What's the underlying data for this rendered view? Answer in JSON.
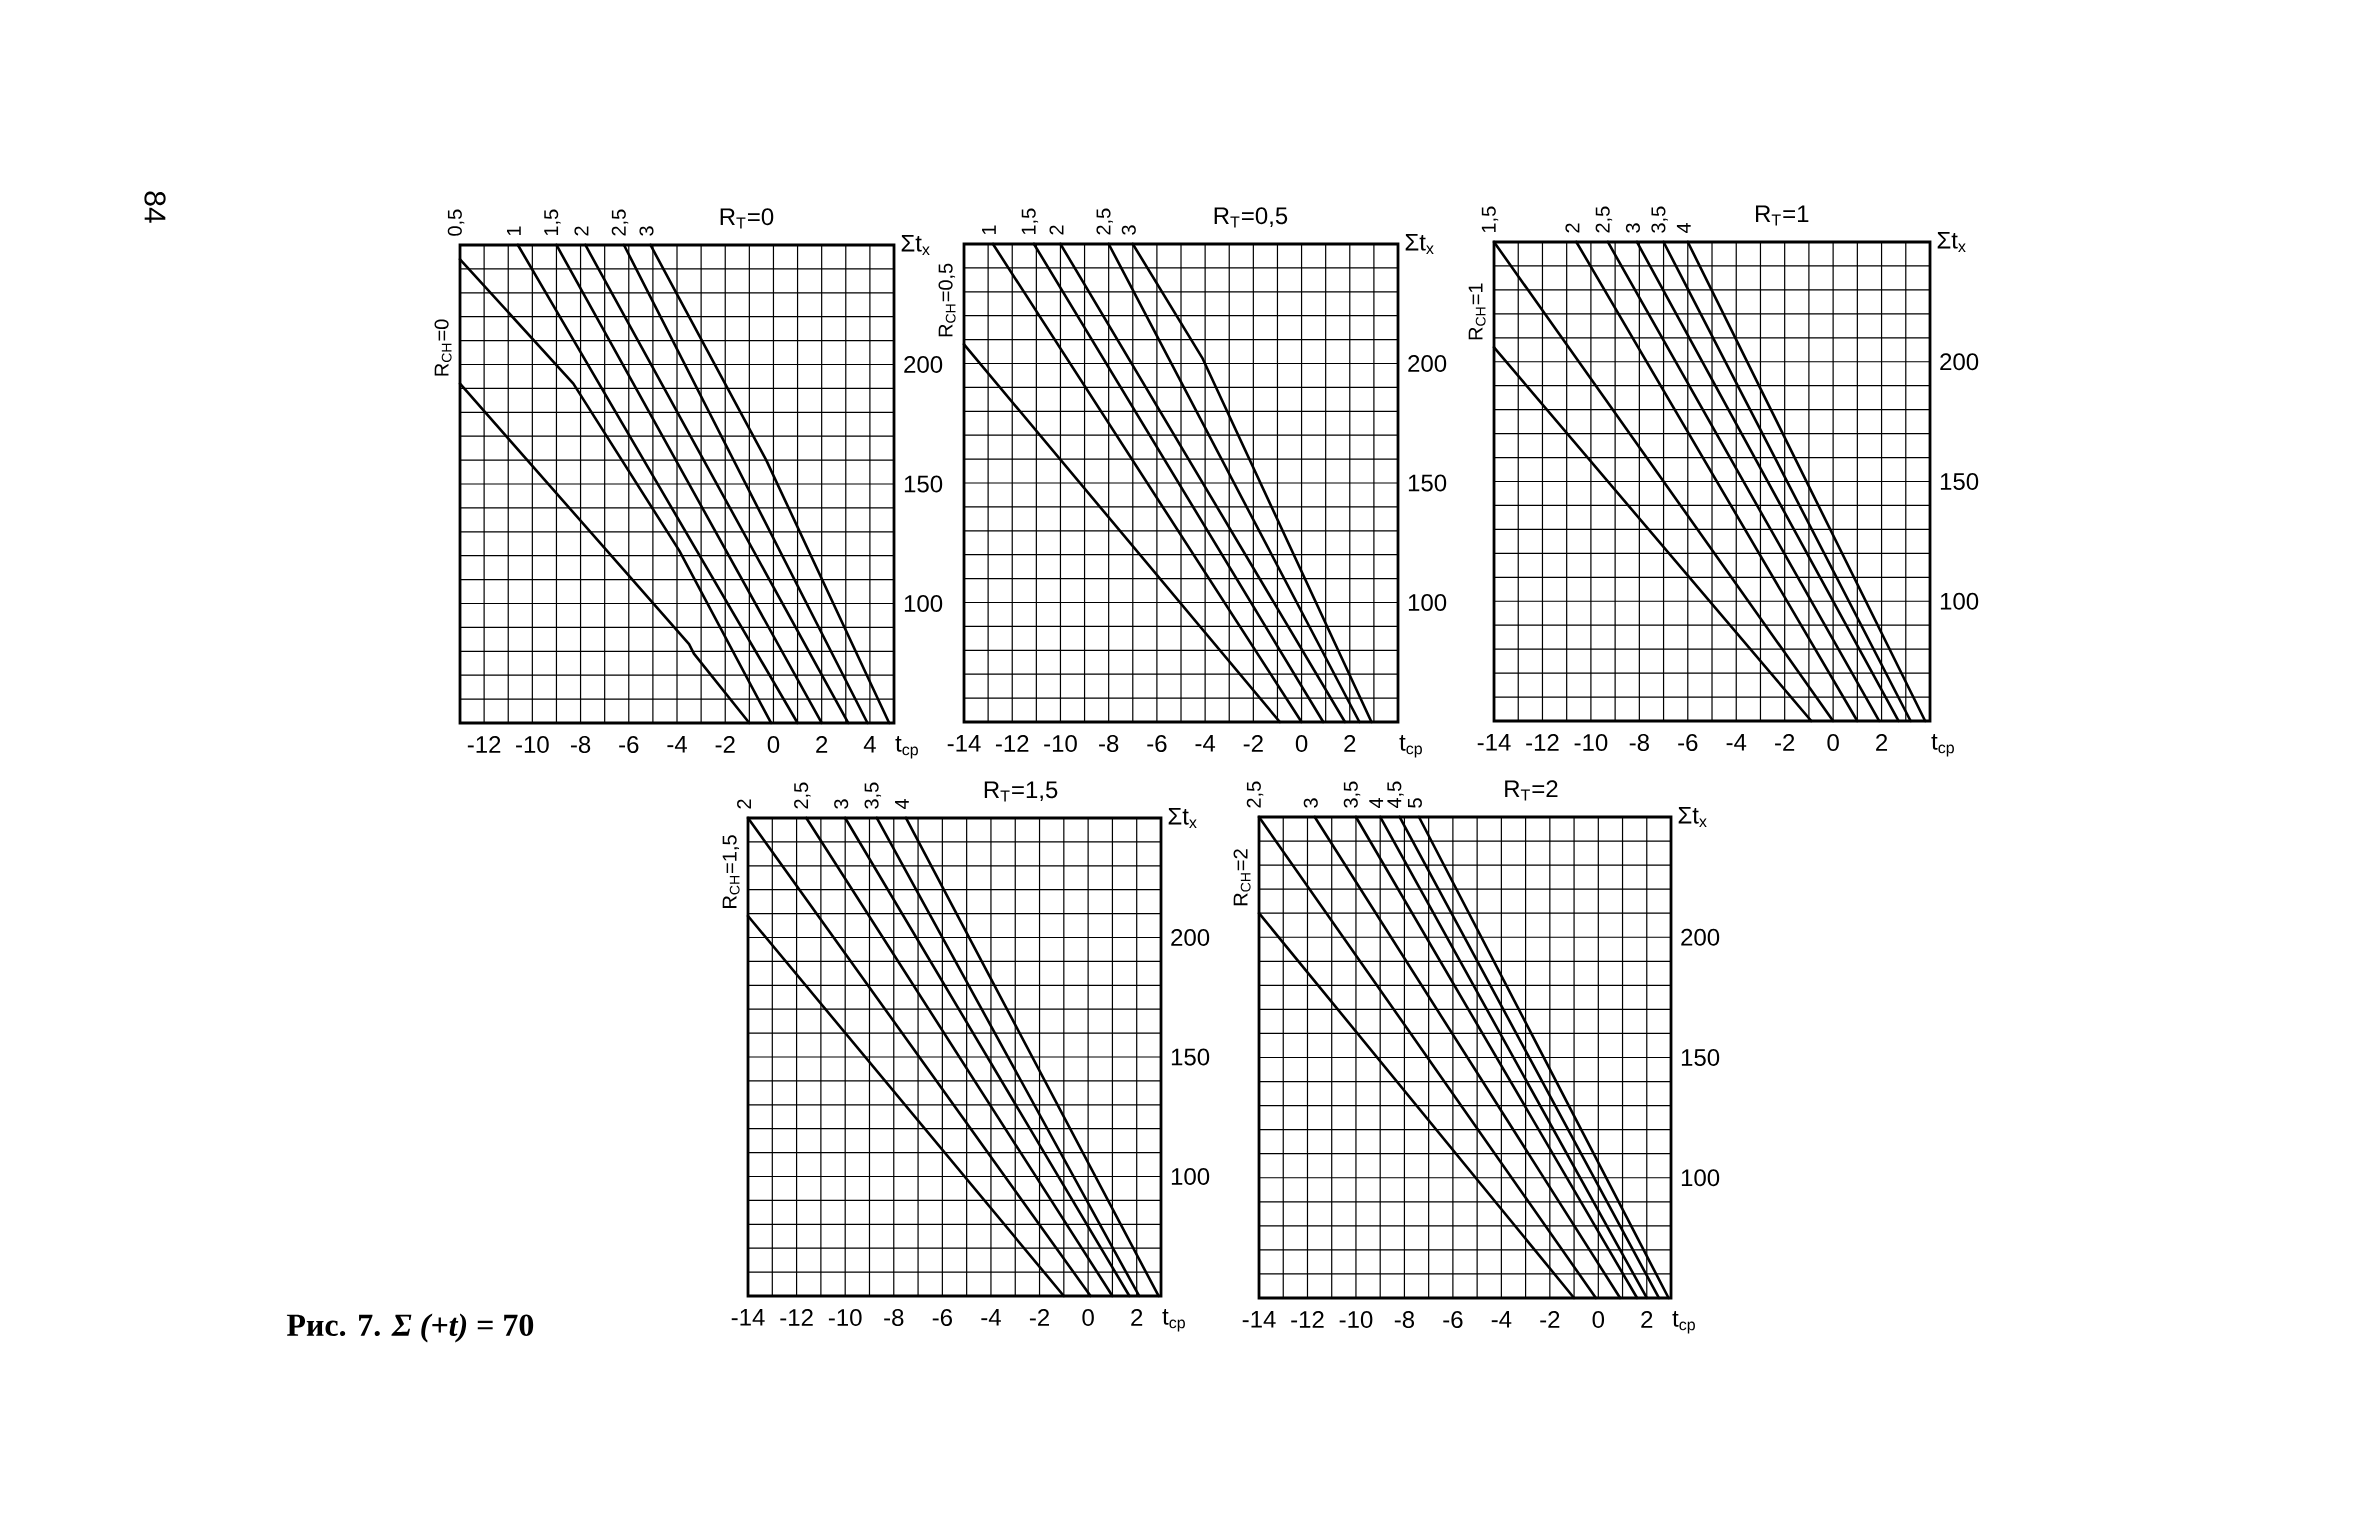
{
  "chart_data": [
    {
      "type": "line",
      "title": "R$_{Т}$=0",
      "xlabel": "t$_{ср}$",
      "ylabel": "Σt$_{х}$",
      "xlim": [
        -13,
        5
      ],
      "ylim": [
        50,
        250
      ],
      "xticks": [
        {
          "value": -13,
          "label": null
        },
        -12,
        {
          "value": -11,
          "label": null
        },
        -10,
        {
          "value": -9,
          "label": null
        },
        -8,
        {
          "value": -7,
          "label": null
        },
        -6,
        {
          "value": -5,
          "label": null
        },
        -4,
        {
          "value": -3,
          "label": null
        },
        -2,
        {
          "value": -1,
          "label": null
        },
        0,
        {
          "value": 1,
          "label": null
        },
        2,
        {
          "value": 3,
          "label": null
        },
        4,
        {
          "value": 5,
          "label": null
        }
      ],
      "yticks": [
        {
          "value": 50,
          "label": null
        },
        {
          "value": 60,
          "label": null
        },
        {
          "value": 70,
          "label": null
        },
        {
          "value": 80,
          "label": null
        },
        {
          "value": 90,
          "label": null
        },
        100,
        {
          "value": 110,
          "label": null
        },
        {
          "value": 120,
          "label": null
        },
        {
          "value": 130,
          "label": null
        },
        {
          "value": 140,
          "label": null
        },
        150,
        {
          "value": 160,
          "label": null
        },
        {
          "value": 170,
          "label": null
        },
        {
          "value": 180,
          "label": null
        },
        {
          "value": 190,
          "label": null
        },
        200,
        {
          "value": 210,
          "label": null
        },
        {
          "value": 220,
          "label": null
        },
        {
          "value": 230,
          "label": null
        },
        {
          "value": 240,
          "label": null
        },
        {
          "value": 250,
          "label": null
        }
      ],
      "grid": true,
      "series": [
        {
          "name": "R$_{СН}$=0",
          "color": "#000000",
          "x": [
            -13,
            -3.5,
            -3.3,
            -1.0
          ],
          "values": [
            192,
            83,
            79,
            50
          ]
        },
        {
          "name": "0,5",
          "color": "#000000",
          "x": [
            -13,
            -8.3,
            -3.9,
            -0.1
          ],
          "values": [
            244,
            192,
            122,
            50
          ]
        },
        {
          "name": "1",
          "color": "#000000",
          "x": [
            -10.6,
            1.0
          ],
          "values": [
            250,
            50
          ]
        },
        {
          "name": "1,5",
          "color": "#000000",
          "x": [
            -9.0,
            2.0
          ],
          "values": [
            250,
            50
          ]
        },
        {
          "name": "2",
          "color": "#000000",
          "x": [
            -7.8,
            3.1
          ],
          "values": [
            250,
            50
          ]
        },
        {
          "name": "2,5",
          "color": "#000000",
          "x": [
            -6.2,
            3.9
          ],
          "values": [
            250,
            50
          ]
        },
        {
          "name": "3",
          "color": "#000000",
          "x": [
            -5.1,
            -0.3,
            4.8
          ],
          "values": [
            250,
            160,
            50
          ]
        }
      ],
      "annotations": [
        "84"
      ]
    },
    {
      "type": "line",
      "title": "R$_{Т}$=0,5",
      "xlabel": "t$_{ср}$",
      "ylabel": "Σt$_{х}$",
      "xlim": [
        -14,
        4
      ],
      "ylim": [
        50,
        250
      ],
      "xticks": [
        -14,
        {
          "value": -13,
          "label": null
        },
        -12,
        {
          "value": -11,
          "label": null
        },
        -10,
        {
          "value": -9,
          "label": null
        },
        -8,
        {
          "value": -7,
          "label": null
        },
        -6,
        {
          "value": -5,
          "label": null
        },
        -4,
        {
          "value": -3,
          "label": null
        },
        -2,
        {
          "value": -1,
          "label": null
        },
        0,
        {
          "value": 1,
          "label": null
        },
        2,
        {
          "value": 3,
          "label": null
        },
        {
          "value": 4,
          "label": null
        }
      ],
      "yticks": [
        {
          "value": 50,
          "label": null
        },
        {
          "value": 60,
          "label": null
        },
        {
          "value": 70,
          "label": null
        },
        {
          "value": 80,
          "label": null
        },
        {
          "value": 90,
          "label": null
        },
        100,
        {
          "value": 110,
          "label": null
        },
        {
          "value": 120,
          "label": null
        },
        {
          "value": 130,
          "label": null
        },
        {
          "value": 140,
          "label": null
        },
        150,
        {
          "value": 160,
          "label": null
        },
        {
          "value": 170,
          "label": null
        },
        {
          "value": 180,
          "label": null
        },
        {
          "value": 190,
          "label": null
        },
        200,
        {
          "value": 210,
          "label": null
        },
        {
          "value": 220,
          "label": null
        },
        {
          "value": 230,
          "label": null
        },
        {
          "value": 240,
          "label": null
        },
        {
          "value": 250,
          "label": null
        }
      ],
      "grid": true,
      "series": [
        {
          "name": "R$_{СН}$=0,5",
          "color": "#000000",
          "x": [
            -14,
            -0.9
          ],
          "values": [
            208,
            50
          ]
        },
        {
          "name": "1",
          "color": "#000000",
          "x": [
            -12.8,
            0.0
          ],
          "values": [
            250,
            50
          ]
        },
        {
          "name": "1,5",
          "color": "#000000",
          "x": [
            -11.1,
            0.9
          ],
          "values": [
            250,
            50
          ]
        },
        {
          "name": "2",
          "color": "#000000",
          "x": [
            -10.0,
            1.8
          ],
          "values": [
            250,
            50
          ]
        },
        {
          "name": "2,5",
          "color": "#000000",
          "x": [
            -8.0,
            2.4
          ],
          "values": [
            250,
            50
          ]
        },
        {
          "name": "3",
          "color": "#000000",
          "x": [
            -7.0,
            -4.1,
            2.9
          ],
          "values": [
            250,
            202,
            50
          ]
        }
      ]
    },
    {
      "type": "line",
      "title": "R$_{Т}$=1",
      "xlabel": "t$_{ср}$",
      "ylabel": "Σt$_{х}$",
      "xlim": [
        -14,
        4
      ],
      "ylim": [
        50,
        250
      ],
      "xticks": [
        -14,
        {
          "value": -13,
          "label": null
        },
        -12,
        {
          "value": -11,
          "label": null
        },
        -10,
        {
          "value": -9,
          "label": null
        },
        -8,
        {
          "value": -7,
          "label": null
        },
        -6,
        {
          "value": -5,
          "label": null
        },
        -4,
        {
          "value": -3,
          "label": null
        },
        -2,
        {
          "value": -1,
          "label": null
        },
        0,
        {
          "value": 1,
          "label": null
        },
        2,
        {
          "value": 3,
          "label": null
        },
        {
          "value": 4,
          "label": null
        }
      ],
      "yticks": [
        {
          "value": 50,
          "label": null
        },
        {
          "value": 60,
          "label": null
        },
        {
          "value": 70,
          "label": null
        },
        {
          "value": 80,
          "label": null
        },
        {
          "value": 90,
          "label": null
        },
        100,
        {
          "value": 110,
          "label": null
        },
        {
          "value": 120,
          "label": null
        },
        {
          "value": 130,
          "label": null
        },
        {
          "value": 140,
          "label": null
        },
        150,
        {
          "value": 160,
          "label": null
        },
        {
          "value": 170,
          "label": null
        },
        {
          "value": 180,
          "label": null
        },
        {
          "value": 190,
          "label": null
        },
        200,
        {
          "value": 210,
          "label": null
        },
        {
          "value": 220,
          "label": null
        },
        {
          "value": 230,
          "label": null
        },
        {
          "value": 240,
          "label": null
        },
        {
          "value": 250,
          "label": null
        }
      ],
      "grid": true,
      "series": [
        {
          "name": "R$_{СН}$=1",
          "color": "#000000",
          "x": [
            -14,
            -0.9
          ],
          "values": [
            206,
            50
          ]
        },
        {
          "name": "1,5",
          "color": "#000000",
          "x": [
            -14,
            0.0
          ],
          "values": [
            250,
            50
          ]
        },
        {
          "name": "2",
          "color": "#000000",
          "x": [
            -10.6,
            1.0
          ],
          "values": [
            250,
            50
          ]
        },
        {
          "name": "2,5",
          "color": "#000000",
          "x": [
            -9.3,
            1.9
          ],
          "values": [
            250,
            50
          ]
        },
        {
          "name": "3",
          "color": "#000000",
          "x": [
            -8.1,
            2.7
          ],
          "values": [
            250,
            50
          ]
        },
        {
          "name": "3,5",
          "color": "#000000",
          "x": [
            -7.0,
            3.2
          ],
          "values": [
            250,
            50
          ]
        },
        {
          "name": "4",
          "color": "#000000",
          "x": [
            -6.0,
            3.8
          ],
          "values": [
            250,
            50
          ]
        }
      ]
    },
    {
      "type": "line",
      "title": "R$_{Т}$=1,5",
      "xlabel": "t$_{ср}$",
      "ylabel": "Σt$_{х}$",
      "xlim": [
        -14,
        3
      ],
      "ylim": [
        50,
        250
      ],
      "xticks": [
        -14,
        {
          "value": -13,
          "label": null
        },
        -12,
        {
          "value": -11,
          "label": null
        },
        -10,
        {
          "value": -9,
          "label": null
        },
        -8,
        {
          "value": -7,
          "label": null
        },
        -6,
        {
          "value": -5,
          "label": null
        },
        -4,
        {
          "value": -3,
          "label": null
        },
        -2,
        {
          "value": -1,
          "label": null
        },
        0,
        {
          "value": 1,
          "label": null
        },
        2,
        {
          "value": 3,
          "label": null
        }
      ],
      "yticks": [
        {
          "value": 50,
          "label": null
        },
        {
          "value": 60,
          "label": null
        },
        {
          "value": 70,
          "label": null
        },
        {
          "value": 80,
          "label": null
        },
        {
          "value": 90,
          "label": null
        },
        100,
        {
          "value": 110,
          "label": null
        },
        {
          "value": 120,
          "label": null
        },
        {
          "value": 130,
          "label": null
        },
        {
          "value": 140,
          "label": null
        },
        150,
        {
          "value": 160,
          "label": null
        },
        {
          "value": 170,
          "label": null
        },
        {
          "value": 180,
          "label": null
        },
        {
          "value": 190,
          "label": null
        },
        200,
        {
          "value": 210,
          "label": null
        },
        {
          "value": 220,
          "label": null
        },
        {
          "value": 230,
          "label": null
        },
        {
          "value": 240,
          "label": null
        },
        {
          "value": 250,
          "label": null
        }
      ],
      "grid": true,
      "series": [
        {
          "name": "R$_{СН}$=1,5",
          "color": "#000000",
          "x": [
            -14,
            -1.0
          ],
          "values": [
            209,
            50
          ]
        },
        {
          "name": "2",
          "color": "#000000",
          "x": [
            -14,
            0.1
          ],
          "values": [
            250,
            50
          ]
        },
        {
          "name": "2,5",
          "color": "#000000",
          "x": [
            -11.6,
            1.0
          ],
          "values": [
            250,
            50
          ]
        },
        {
          "name": "3",
          "color": "#000000",
          "x": [
            -10.0,
            1.7
          ],
          "values": [
            250,
            50
          ]
        },
        {
          "name": "3,5",
          "color": "#000000",
          "x": [
            -8.7,
            2.1
          ],
          "values": [
            250,
            50
          ]
        },
        {
          "name": "4",
          "color": "#000000",
          "x": [
            -7.5,
            2.9
          ],
          "values": [
            250,
            50
          ]
        }
      ],
      "annotations": [
        "Рис. 7. *Σ (+t)* = 70"
      ]
    },
    {
      "type": "line",
      "title": "R$_{Т}$=2",
      "xlabel": "t$_{ср}$",
      "ylabel": "Σt$_{х}$",
      "xlim": [
        -14,
        3
      ],
      "ylim": [
        50,
        250
      ],
      "xticks": [
        -14,
        {
          "value": -13,
          "label": null
        },
        -12,
        {
          "value": -11,
          "label": null
        },
        -10,
        {
          "value": -9,
          "label": null
        },
        -8,
        {
          "value": -7,
          "label": null
        },
        -6,
        {
          "value": -5,
          "label": null
        },
        -4,
        {
          "value": -3,
          "label": null
        },
        -2,
        {
          "value": -1,
          "label": null
        },
        0,
        {
          "value": 1,
          "label": null
        },
        2,
        {
          "value": 3,
          "label": null
        }
      ],
      "yticks": [
        {
          "value": 50,
          "label": null
        },
        {
          "value": 60,
          "label": null
        },
        {
          "value": 70,
          "label": null
        },
        {
          "value": 80,
          "label": null
        },
        {
          "value": 90,
          "label": null
        },
        100,
        {
          "value": 110,
          "label": null
        },
        {
          "value": 120,
          "label": null
        },
        {
          "value": 130,
          "label": null
        },
        {
          "value": 140,
          "label": null
        },
        150,
        {
          "value": 160,
          "label": null
        },
        {
          "value": 170,
          "label": null
        },
        {
          "value": 180,
          "label": null
        },
        {
          "value": 190,
          "label": null
        },
        200,
        {
          "value": 210,
          "label": null
        },
        {
          "value": 220,
          "label": null
        },
        {
          "value": 230,
          "label": null
        },
        {
          "value": 240,
          "label": null
        },
        {
          "value": 250,
          "label": null
        }
      ],
      "grid": true,
      "series": [
        {
          "name": "R$_{СН}$=2",
          "color": "#000000",
          "x": [
            -14,
            -1.0
          ],
          "values": [
            210,
            50
          ]
        },
        {
          "name": "2,5",
          "color": "#000000",
          "x": [
            -14,
            -0.1
          ],
          "values": [
            250,
            50
          ]
        },
        {
          "name": "3",
          "color": "#000000",
          "x": [
            -11.7,
            0.9
          ],
          "values": [
            250,
            50
          ]
        },
        {
          "name": "3,5",
          "color": "#000000",
          "x": [
            -10.0,
            1.6
          ],
          "values": [
            250,
            50
          ]
        },
        {
          "name": "4",
          "color": "#000000",
          "x": [
            -9.0,
            2.0
          ],
          "values": [
            250,
            50
          ]
        },
        {
          "name": "4,5",
          "color": "#000000",
          "x": [
            -8.2,
            2.5
          ],
          "values": [
            250,
            50
          ]
        },
        {
          "name": "5",
          "color": "#000000",
          "x": [
            -7.4,
            2.9
          ],
          "values": [
            250,
            50
          ]
        }
      ]
    }
  ]
}
